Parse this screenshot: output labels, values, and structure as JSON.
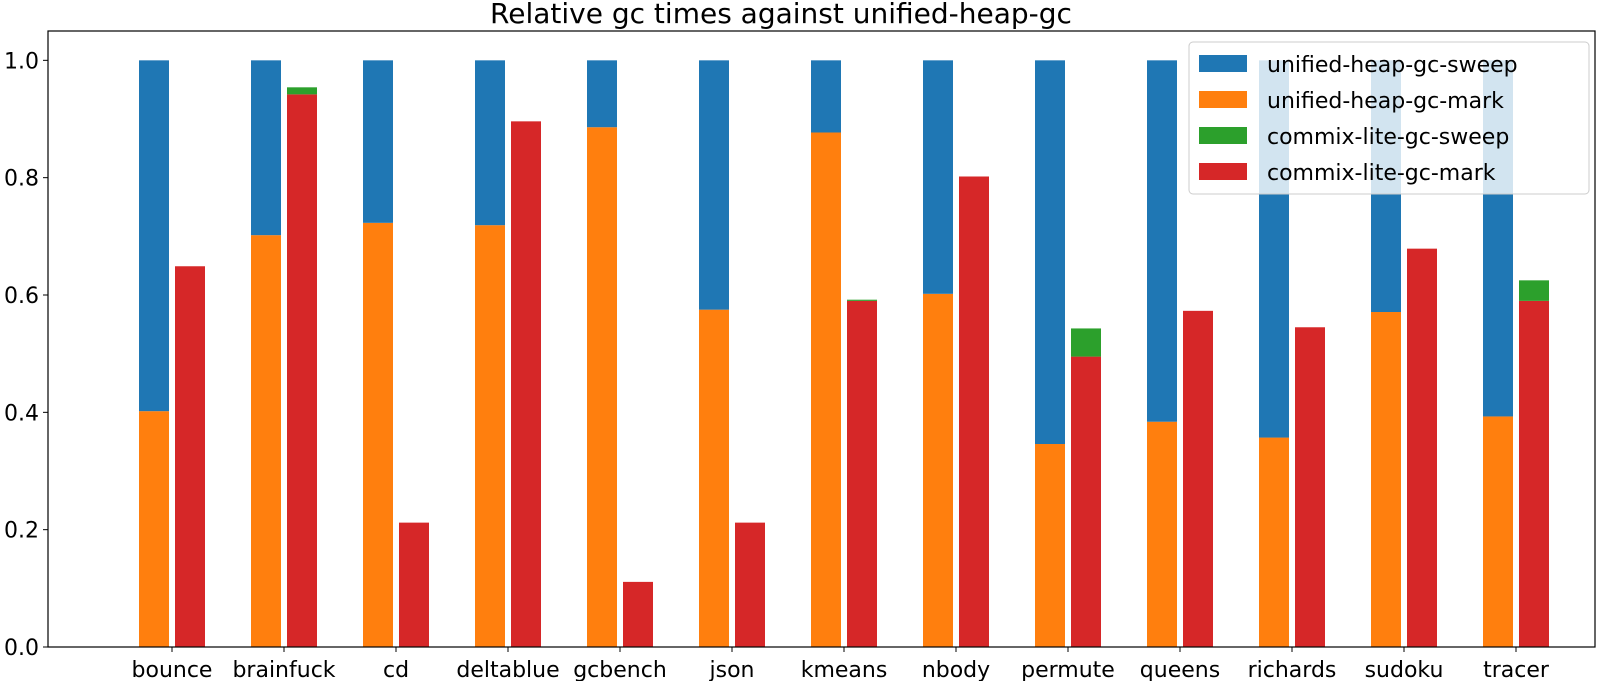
{
  "chart_data": {
    "type": "bar",
    "stacked": true,
    "title": "Relative gc times against unified-heap-gc",
    "xlabel": "",
    "ylabel": "",
    "ylim": [
      0,
      1.05
    ],
    "yticks": [
      0.0,
      0.2,
      0.4,
      0.6,
      0.8,
      1.0
    ],
    "ytick_labels": [
      "0.0",
      "0.2",
      "0.4",
      "0.6",
      "0.8",
      "1.0"
    ],
    "grid": false,
    "legend_position": "top-right",
    "categories": [
      "bounce",
      "brainfuck",
      "cd",
      "deltablue",
      "gcbench",
      "json",
      "kmeans",
      "nbody",
      "permute",
      "queens",
      "richards",
      "sudoku",
      "tracer"
    ],
    "series": [
      {
        "name": "unified-heap-gc-sweep",
        "group": "unified-heap-gc",
        "color": "#1f77b4",
        "values": [
          0.598,
          0.298,
          0.277,
          0.281,
          0.114,
          0.425,
          0.123,
          0.398,
          0.654,
          0.616,
          0.643,
          0.429,
          0.607
        ]
      },
      {
        "name": "unified-heap-gc-mark",
        "group": "unified-heap-gc",
        "color": "#ff7f0e",
        "values": [
          0.402,
          0.702,
          0.723,
          0.719,
          0.886,
          0.575,
          0.877,
          0.602,
          0.346,
          0.384,
          0.357,
          0.571,
          0.393
        ]
      },
      {
        "name": "commix-lite-gc-sweep",
        "group": "commix-lite-gc",
        "color": "#2ca02c",
        "values": [
          0.0,
          0.012,
          0.0,
          0.0,
          0.0,
          0.0,
          0.002,
          0.0,
          0.048,
          0.0,
          0.0,
          0.0,
          0.035
        ]
      },
      {
        "name": "commix-lite-gc-mark",
        "group": "commix-lite-gc",
        "color": "#d62728",
        "values": [
          0.649,
          0.942,
          0.212,
          0.896,
          0.111,
          0.212,
          0.59,
          0.802,
          0.495,
          0.573,
          0.545,
          0.679,
          0.59
        ]
      }
    ]
  }
}
